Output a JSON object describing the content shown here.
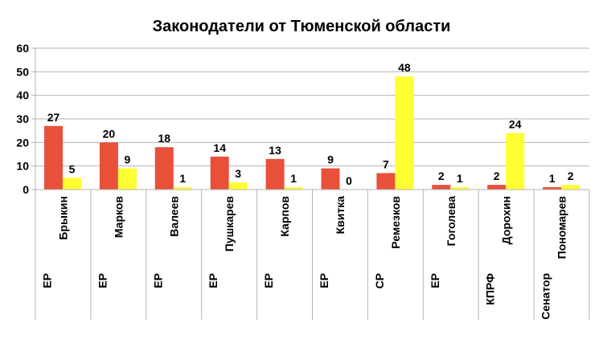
{
  "chart_data": {
    "type": "bar",
    "title": "Законодатели от Тюменской области",
    "xlabel": "",
    "ylabel": "",
    "ylim": [
      0,
      60
    ],
    "yticks": [
      0,
      10,
      20,
      30,
      40,
      50,
      60
    ],
    "grid": true,
    "legend": "none",
    "categories": [
      {
        "party": "ЕР",
        "name": "Брыкин"
      },
      {
        "party": "ЕР",
        "name": "Марков"
      },
      {
        "party": "ЕР",
        "name": "Валеев"
      },
      {
        "party": "ЕР",
        "name": "Пушкарев"
      },
      {
        "party": "ЕР",
        "name": "Карпов"
      },
      {
        "party": "ЕР",
        "name": "Квитка"
      },
      {
        "party": "СР",
        "name": "Ремезков"
      },
      {
        "party": "ЕР",
        "name": "Гоголева"
      },
      {
        "party": "КПРФ",
        "name": "Дорохин"
      },
      {
        "party": "Сенатор",
        "name": "Пономарев"
      }
    ],
    "series": [
      {
        "color": "#e8503a",
        "values": [
          27,
          20,
          18,
          14,
          13,
          9,
          7,
          2,
          2,
          1
        ]
      },
      {
        "color": "#ffff33",
        "values": [
          5,
          9,
          1,
          3,
          1,
          0,
          48,
          1,
          24,
          2
        ]
      }
    ]
  }
}
